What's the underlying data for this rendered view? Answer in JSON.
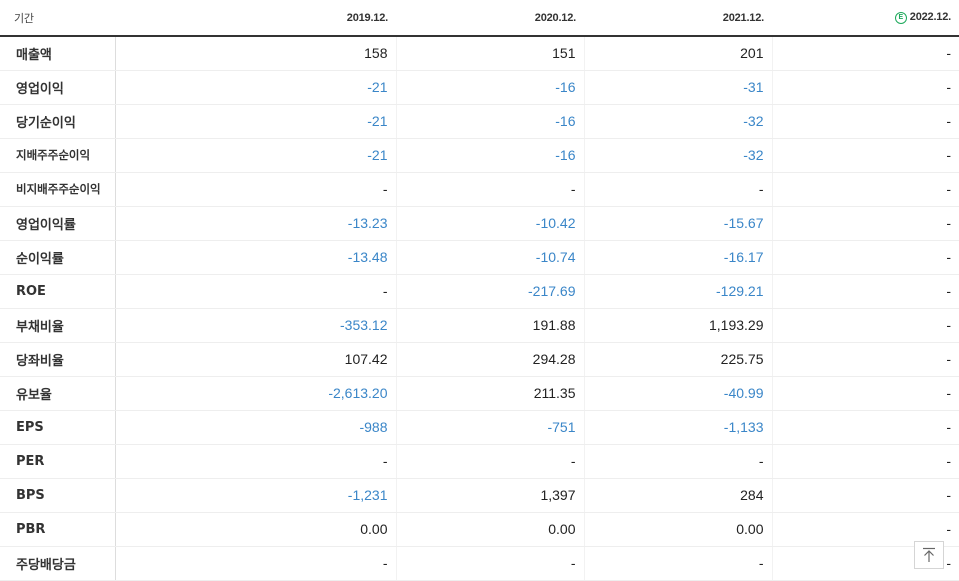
{
  "header": {
    "period_label": "기간",
    "years": [
      "2019.12.",
      "2020.12.",
      "2021.12.",
      "2022.12."
    ],
    "estimate_badge": "E"
  },
  "rows": [
    {
      "label": "매출액",
      "values": [
        "158",
        "151",
        "201",
        "-"
      ]
    },
    {
      "label": "영업이익",
      "values": [
        "-21",
        "-16",
        "-31",
        "-"
      ]
    },
    {
      "label": "당기순이익",
      "values": [
        "-21",
        "-16",
        "-32",
        "-"
      ]
    },
    {
      "label": "지배주주순이익",
      "values": [
        "-21",
        "-16",
        "-32",
        "-"
      ]
    },
    {
      "label": "비지배주주순이익",
      "values": [
        "-",
        "-",
        "-",
        "-"
      ]
    },
    {
      "label": "영업이익률",
      "values": [
        "-13.23",
        "-10.42",
        "-15.67",
        "-"
      ]
    },
    {
      "label": "순이익률",
      "values": [
        "-13.48",
        "-10.74",
        "-16.17",
        "-"
      ]
    },
    {
      "label": "ROE",
      "values": [
        "-",
        "-217.69",
        "-129.21",
        "-"
      ]
    },
    {
      "label": "부채비율",
      "values": [
        "-353.12",
        "191.88",
        "1,193.29",
        "-"
      ]
    },
    {
      "label": "당좌비율",
      "values": [
        "107.42",
        "294.28",
        "225.75",
        "-"
      ]
    },
    {
      "label": "유보율",
      "values": [
        "-2,613.20",
        "211.35",
        "-40.99",
        "-"
      ]
    },
    {
      "label": "EPS",
      "values": [
        "-988",
        "-751",
        "-1,133",
        "-"
      ]
    },
    {
      "label": "PER",
      "values": [
        "-",
        "-",
        "-",
        "-"
      ]
    },
    {
      "label": "BPS",
      "values": [
        "-1,231",
        "1,397",
        "284",
        "-"
      ]
    },
    {
      "label": "PBR",
      "values": [
        "0.00",
        "0.00",
        "0.00",
        "-"
      ]
    },
    {
      "label": "주당배당금",
      "values": [
        "-",
        "-",
        "-",
        "-"
      ]
    }
  ],
  "colors": {
    "negative": "#3a86c8",
    "estimate": "#1ea95c"
  },
  "icons": {
    "scroll_top": "arrow-up-to-line-icon"
  }
}
